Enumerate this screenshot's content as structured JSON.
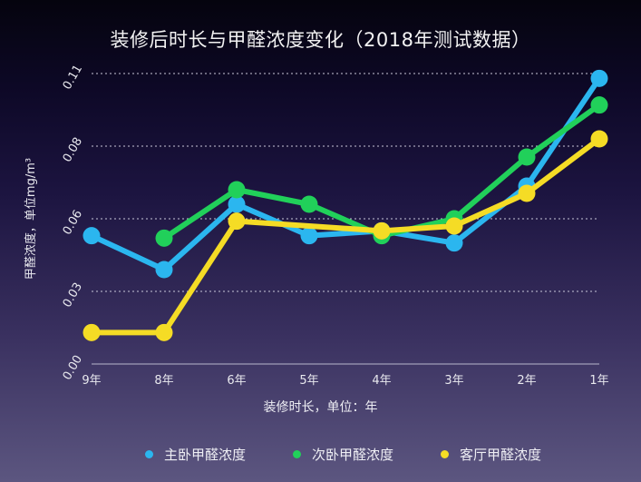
{
  "chart_data": {
    "type": "line",
    "title": "装修后时长与甲醛浓度变化（2018年测试数据）",
    "xlabel": "装修时长，单位：年",
    "ylabel": "甲醛浓度，单位mg/m³",
    "categories": [
      "9年",
      "8年",
      "6年",
      "5年",
      "4年",
      "3年",
      "2年",
      "1年"
    ],
    "yticks": [
      "0.00",
      "0.03",
      "0.06",
      "0.08",
      "0.11"
    ],
    "ylim": [
      0,
      0.11
    ],
    "grid": "horizontal dotted",
    "legend_position": "bottom",
    "series": [
      {
        "name": "主卧甲醛浓度",
        "color": "#2bb6ef",
        "values": [
          0.053,
          0.039,
          0.064,
          0.053,
          0.055,
          0.05,
          0.069,
          0.108
        ]
      },
      {
        "name": "次卧甲醛浓度",
        "color": "#21d05a",
        "values": [
          null,
          0.052,
          0.068,
          0.064,
          0.053,
          0.06,
          0.077,
          0.097
        ]
      },
      {
        "name": "客厅甲醛浓度",
        "color": "#f5dc25",
        "values": [
          0.013,
          0.013,
          0.059,
          null,
          0.055,
          0.057,
          0.067,
          0.083
        ]
      }
    ]
  }
}
